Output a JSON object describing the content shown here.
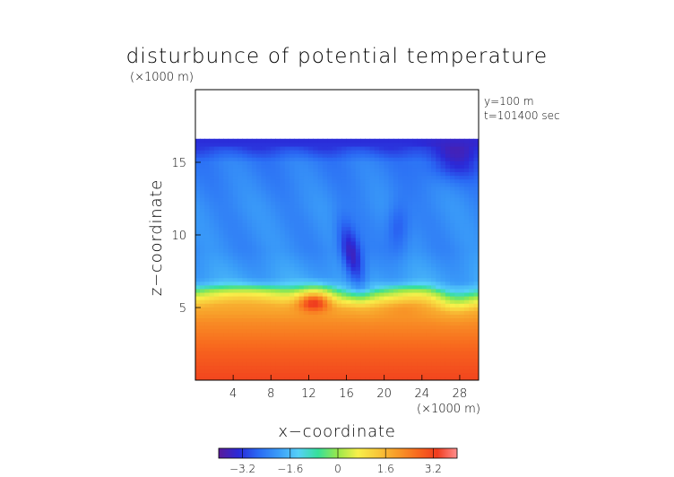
{
  "chart_data": {
    "type": "heatmap",
    "title": "disturbunce of potential temperature",
    "scale_note": "(×1000 m)",
    "info": [
      "y=100 m",
      "t=101400 sec"
    ],
    "xlabel": "x−coordinate",
    "ylabel": "z−coordinate",
    "xunit": "(×1000 m)",
    "xlim": [
      0,
      30
    ],
    "ylim": [
      0,
      20
    ],
    "xticks": [
      4,
      8,
      12,
      16,
      20,
      24,
      28
    ],
    "xtick_labels": [
      "4",
      "8",
      "12",
      "16",
      "20",
      "24",
      "28"
    ],
    "yticks": [
      5,
      10,
      15
    ],
    "ytick_labels": [
      "5",
      "10",
      "15"
    ],
    "colorbar": {
      "min": -4,
      "max": 4,
      "ticks": [
        -3.2,
        -1.6,
        0,
        1.6,
        3.2
      ],
      "tick_labels": [
        "−3.2",
        "−1.6",
        "0",
        "1.6",
        "3.2"
      ]
    },
    "colors": [
      "#5a1a9a",
      "#2a2ad8",
      "#2a6af4",
      "#3a9cf8",
      "#56d0f8",
      "#36e09a",
      "#9ae84a",
      "#f8f04a",
      "#f8c83a",
      "#f89a28",
      "#f86a1e",
      "#f03c1e",
      "#ff8e8e"
    ],
    "field_top_z": 16.6,
    "field_samples": {
      "z": [
        0,
        2,
        4,
        5,
        5.5,
        6,
        6.5,
        7,
        9,
        12,
        15,
        16.3
      ],
      "theta": [
        3.2,
        2.8,
        2.2,
        1.7,
        0.9,
        0.0,
        -1.4,
        -1.9,
        -2.2,
        -2.2,
        -2.4,
        -3.3
      ]
    }
  }
}
